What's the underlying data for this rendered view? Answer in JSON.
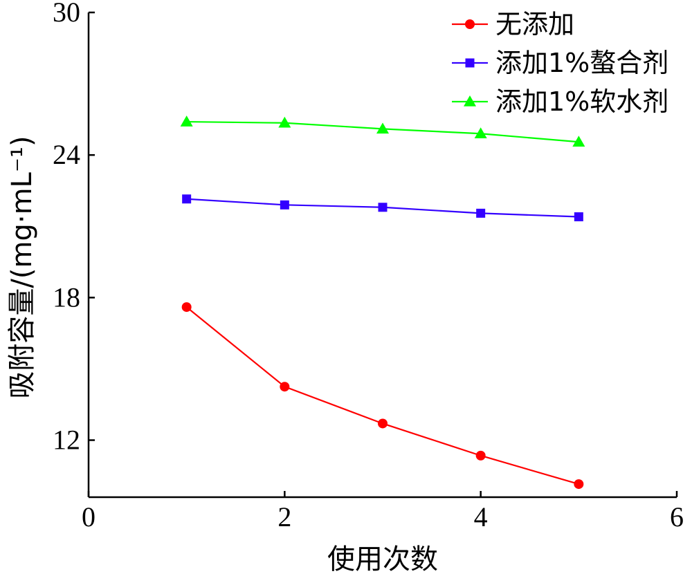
{
  "chart_data": {
    "type": "line",
    "title": "",
    "xlabel": "使用次数",
    "ylabel": "吸附容量/(mg·mL⁻¹)",
    "xlim": [
      0,
      6
    ],
    "ylim": [
      9.6,
      30
    ],
    "x_ticks": [
      0,
      2,
      4,
      6
    ],
    "y_ticks": [
      12,
      18,
      24,
      30
    ],
    "legend_position": "top-right",
    "grid": false,
    "x": [
      1,
      2,
      3,
      4,
      5
    ],
    "series": [
      {
        "name": "无添加",
        "color": "#ff0000",
        "marker": "circle",
        "values": [
          17.6,
          14.25,
          12.7,
          11.35,
          10.15
        ]
      },
      {
        "name": "添加1%螯合剂",
        "color": "#3300ff",
        "marker": "square",
        "values": [
          22.15,
          21.9,
          21.8,
          21.55,
          21.4
        ]
      },
      {
        "name": "添加1%软水剂",
        "color": "#00ff00",
        "marker": "triangle",
        "values": [
          25.4,
          25.35,
          25.1,
          24.9,
          24.55
        ]
      }
    ]
  }
}
